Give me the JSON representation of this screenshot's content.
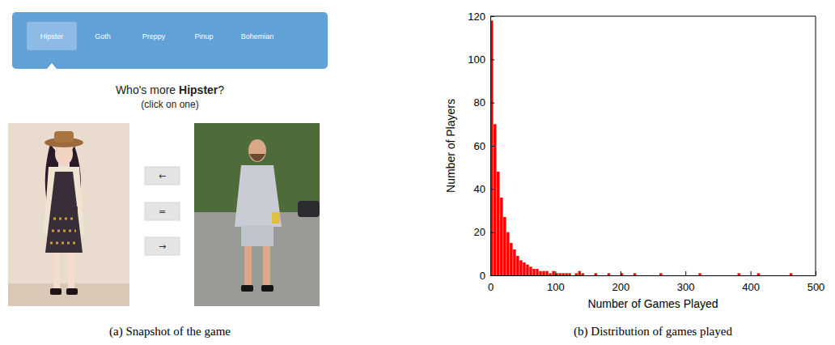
{
  "screenshot": {
    "tabs": [
      "Hipster",
      "Goth",
      "Preppy",
      "Pinup",
      "Bohemian"
    ],
    "selected_tab": 0,
    "question": {
      "prefix": "Who's more ",
      "emphasis": "Hipster",
      "suffix": "?"
    },
    "instruction": "(click on one)",
    "buttons": [
      "←",
      "=",
      "→"
    ],
    "caption": "(a) Snapshot of the game"
  },
  "chart_data": {
    "type": "histogram",
    "caption": "(b) Distribution of games played",
    "xlabel": "Number of Games Played",
    "ylabel": "Number of Players",
    "color": "#ff0000",
    "bins": [
      0,
      5,
      10,
      15,
      20,
      25,
      30,
      35,
      40,
      45,
      50,
      55,
      60,
      65,
      70,
      75,
      80,
      85,
      90,
      95,
      100,
      105,
      110,
      115,
      120,
      125,
      130,
      135,
      140,
      145,
      150,
      155,
      160,
      165,
      170,
      175,
      180,
      185,
      190,
      195,
      200,
      205,
      210,
      215,
      220,
      225,
      230,
      235,
      240,
      245,
      250,
      255,
      260,
      265,
      270,
      275,
      280,
      285,
      290,
      295,
      300,
      305,
      310,
      315,
      320,
      325,
      330,
      335,
      340,
      345,
      350,
      355,
      360,
      365,
      370,
      375,
      380,
      385,
      390,
      395,
      400,
      405,
      410,
      415,
      420,
      425,
      430,
      435,
      440,
      445,
      450,
      455,
      460,
      465,
      470,
      475,
      480,
      485,
      490,
      495,
      500
    ],
    "counts": [
      118,
      70,
      48,
      36,
      27,
      20,
      15,
      12,
      9,
      7,
      6,
      5,
      4,
      3,
      3,
      2,
      2,
      2,
      1,
      2,
      1,
      1,
      1,
      1,
      1,
      0,
      1,
      2,
      1,
      0,
      0,
      0,
      1,
      0,
      0,
      0,
      1,
      0,
      0,
      0,
      1,
      0,
      0,
      0,
      1,
      0,
      0,
      0,
      0,
      0,
      0,
      0,
      1,
      0,
      0,
      0,
      0,
      0,
      0,
      0,
      0,
      0,
      0,
      0,
      1,
      0,
      0,
      0,
      0,
      0,
      0,
      0,
      0,
      0,
      0,
      0,
      1,
      0,
      0,
      0,
      0,
      0,
      1,
      0,
      0,
      0,
      0,
      0,
      0,
      0,
      0,
      0,
      1,
      0,
      0,
      0,
      0,
      0,
      0,
      0
    ],
    "xlim": [
      0,
      500
    ],
    "ylim": [
      0,
      120
    ],
    "xticks": [
      0,
      100,
      200,
      300,
      400,
      500
    ],
    "yticks": [
      0,
      20,
      40,
      60,
      80,
      100,
      120
    ]
  }
}
